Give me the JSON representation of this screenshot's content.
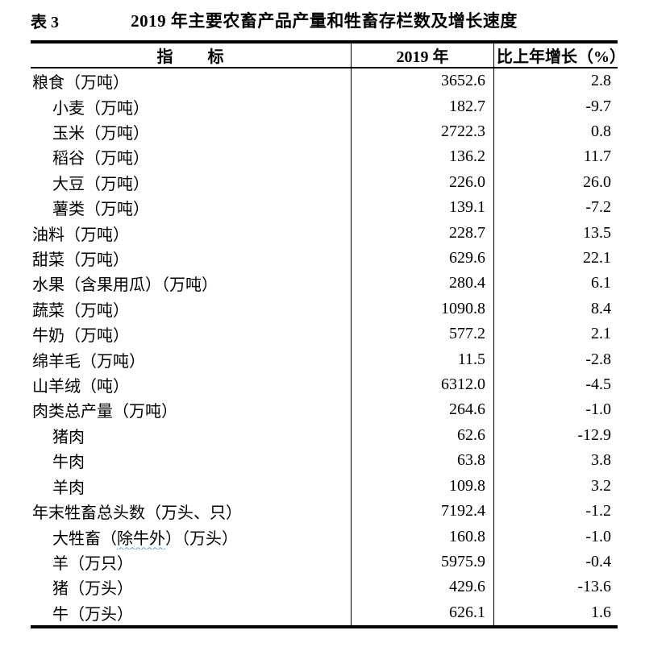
{
  "caption": {
    "table_label": "表 3",
    "title": "2019 年主要农畜产品产量和牲畜存栏数及增长速度"
  },
  "table": {
    "columns": {
      "indicator": "指       标",
      "year": "2019 年",
      "growth": "比上年增长（%）"
    },
    "rows": [
      {
        "indicator": "粮食（万吨）",
        "value": "3652.6",
        "growth": "2.8",
        "indent": 0
      },
      {
        "indicator": "小麦（万吨）",
        "value": "182.7",
        "growth": "-9.7",
        "indent": 1
      },
      {
        "indicator": "玉米（万吨）",
        "value": "2722.3",
        "growth": "0.8",
        "indent": 1
      },
      {
        "indicator": "稻谷（万吨）",
        "value": "136.2",
        "growth": "11.7",
        "indent": 1
      },
      {
        "indicator": "大豆（万吨）",
        "value": "226.0",
        "growth": "26.0",
        "indent": 1
      },
      {
        "indicator": "薯类（万吨）",
        "value": "139.1",
        "growth": "-7.2",
        "indent": 1
      },
      {
        "indicator": "油料（万吨）",
        "value": "228.7",
        "growth": "13.5",
        "indent": 0
      },
      {
        "indicator": "甜菜（万吨）",
        "value": "629.6",
        "growth": "22.1",
        "indent": 0
      },
      {
        "indicator": "水果（含果用瓜）（万吨）",
        "value": "280.4",
        "growth": "6.1",
        "indent": 0
      },
      {
        "indicator": "蔬菜（万吨）",
        "value": "1090.8",
        "growth": "8.4",
        "indent": 0
      },
      {
        "indicator": "牛奶（万吨）",
        "value": "577.2",
        "growth": "2.1",
        "indent": 0
      },
      {
        "indicator": "绵羊毛（万吨）",
        "value": "11.5",
        "growth": "-2.8",
        "indent": 0
      },
      {
        "indicator": "山羊绒（吨）",
        "value": "6312.0",
        "growth": "-4.5",
        "indent": 0
      },
      {
        "indicator": "肉类总产量（万吨）",
        "value": "264.6",
        "growth": "-1.0",
        "indent": 0
      },
      {
        "indicator": "猪肉",
        "value": "62.6",
        "growth": "-12.9",
        "indent": 1
      },
      {
        "indicator": "牛肉",
        "value": "63.8",
        "growth": "3.8",
        "indent": 1
      },
      {
        "indicator": "羊肉",
        "value": "109.8",
        "growth": "3.2",
        "indent": 1
      },
      {
        "indicator": "年末牲畜总头数（万头、只）",
        "value": "7192.4",
        "growth": "-1.2",
        "indent": 0
      },
      {
        "indicator": "大牲畜（除牛外）（万头）",
        "squiggle": "除牛外",
        "value": "160.8",
        "growth": "-1.0",
        "indent": 1
      },
      {
        "indicator": "羊（万只）",
        "value": "5975.9",
        "growth": "-0.4",
        "indent": 1
      },
      {
        "indicator": "猪（万头）",
        "value": "429.6",
        "growth": "-13.6",
        "indent": 1
      },
      {
        "indicator": "牛（万头）",
        "value": "626.1",
        "growth": "1.6",
        "indent": 1
      }
    ]
  },
  "colors": {
    "text": "#000000",
    "border": "#000000",
    "background": "#ffffff",
    "squiggle": "#6b9bd2"
  }
}
